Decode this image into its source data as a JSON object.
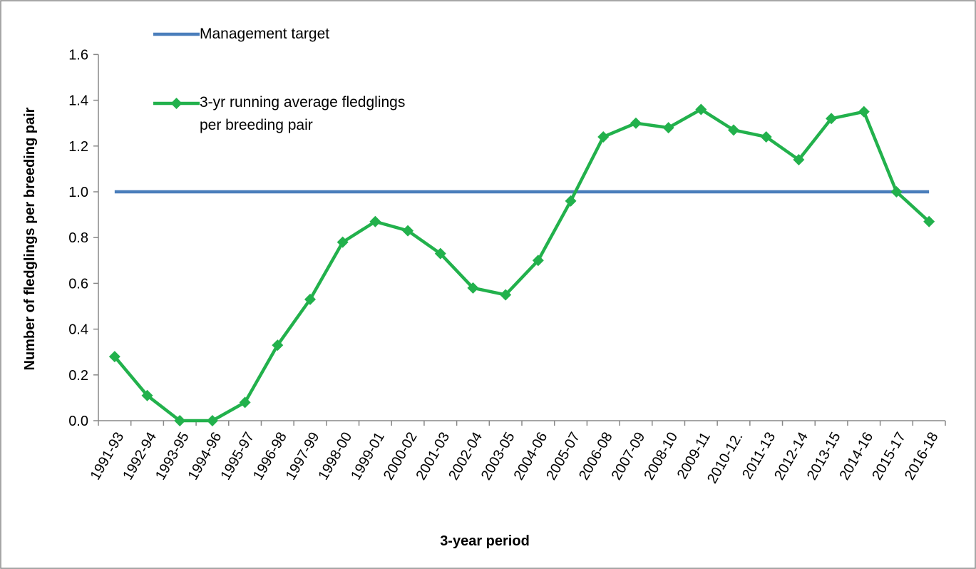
{
  "chart_data": {
    "type": "line",
    "xlabel": "3-year period",
    "ylabel": "Number of fledglings per breeding pair",
    "categories": [
      "1991-93",
      "1992-94",
      "1993-95",
      "1994-96",
      "1995-97",
      "1996-98",
      "1997-99",
      "1998-00",
      "1999-01",
      "2000-02",
      "2001-03",
      "2002-04",
      "2003-05",
      "2004-06",
      "2005-07",
      "2006-08",
      "2007-09",
      "2008-10",
      "2009-11",
      "2010-12.",
      "2011-13",
      "2012-14",
      "2013-15",
      "2014-16",
      "2015-17",
      "2016-18"
    ],
    "series": [
      {
        "name": "Management target",
        "color": "#4a7ebb",
        "marker": "none",
        "values": [
          1,
          1,
          1,
          1,
          1,
          1,
          1,
          1,
          1,
          1,
          1,
          1,
          1,
          1,
          1,
          1,
          1,
          1,
          1,
          1,
          1,
          1,
          1,
          1,
          1,
          1
        ]
      },
      {
        "name": "3-yr running average fledglings per breeding pair",
        "color": "#22b14c",
        "marker": "diamond",
        "values": [
          0.28,
          0.11,
          0,
          0,
          0.08,
          0.33,
          0.53,
          0.78,
          0.87,
          0.83,
          0.73,
          0.58,
          0.55,
          0.7,
          0.96,
          1.24,
          1.3,
          1.28,
          1.36,
          1.27,
          1.24,
          1.14,
          1.32,
          1.35,
          1.0,
          0.87
        ]
      }
    ],
    "ylim": [
      0,
      1.6
    ],
    "yticks": [
      {
        "value": 0,
        "label": "0.0"
      },
      {
        "value": 0.2,
        "label": "0.2"
      },
      {
        "value": 0.4,
        "label": "0.4"
      },
      {
        "value": 0.6,
        "label": "0.6"
      },
      {
        "value": 0.8,
        "label": "0.8"
      },
      {
        "value": 1,
        "label": "1.0"
      },
      {
        "value": 1.2,
        "label": "1.2"
      },
      {
        "value": 1.4,
        "label": "1.4"
      },
      {
        "value": 1.6,
        "label": "1.6"
      }
    ],
    "grid": false
  }
}
